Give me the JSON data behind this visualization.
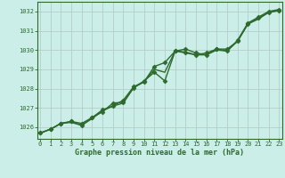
{
  "x": [
    0,
    1,
    2,
    3,
    4,
    5,
    6,
    7,
    8,
    9,
    10,
    11,
    12,
    13,
    14,
    15,
    16,
    17,
    18,
    19,
    20,
    21,
    22,
    23
  ],
  "line1": [
    1025.7,
    1025.9,
    1026.2,
    1026.3,
    1026.2,
    1026.5,
    1026.9,
    1027.1,
    1027.4,
    1028.1,
    1028.35,
    1029.15,
    1029.35,
    1029.95,
    1030.05,
    1029.85,
    1029.75,
    1030.05,
    1030.05,
    1030.45,
    1031.35,
    1031.65,
    1031.95,
    1032.05
  ],
  "line2": [
    1025.7,
    1025.9,
    1026.2,
    1026.3,
    1026.1,
    1026.5,
    1026.8,
    1027.25,
    1027.3,
    1028.05,
    1028.4,
    1028.85,
    1028.4,
    1029.95,
    1029.85,
    1029.75,
    1029.85,
    1030.05,
    1029.95,
    1030.5,
    1031.4,
    1031.7,
    1032.0,
    1032.1
  ],
  "line3": [
    1025.7,
    1025.9,
    1026.2,
    1026.25,
    1026.1,
    1026.45,
    1026.85,
    1027.1,
    1027.25,
    1028.05,
    1028.35,
    1029.0,
    1028.85,
    1029.95,
    1029.9,
    1029.75,
    1029.75,
    1030.0,
    1029.95,
    1030.45,
    1031.35,
    1031.6,
    1031.95,
    1032.05
  ],
  "ylim": [
    1025.4,
    1032.5
  ],
  "yticks": [
    1026,
    1027,
    1028,
    1029,
    1030,
    1031,
    1032
  ],
  "xticks": [
    0,
    1,
    2,
    3,
    4,
    5,
    6,
    7,
    8,
    9,
    10,
    11,
    12,
    13,
    14,
    15,
    16,
    17,
    18,
    19,
    20,
    21,
    22,
    23
  ],
  "line_color": "#2d6a2d",
  "bg_color": "#cceee8",
  "grid_color": "#b0c8c0",
  "xlabel": "Graphe pression niveau de la mer (hPa)",
  "marker": "D",
  "marker_size": 2.5,
  "line_width": 1.0
}
